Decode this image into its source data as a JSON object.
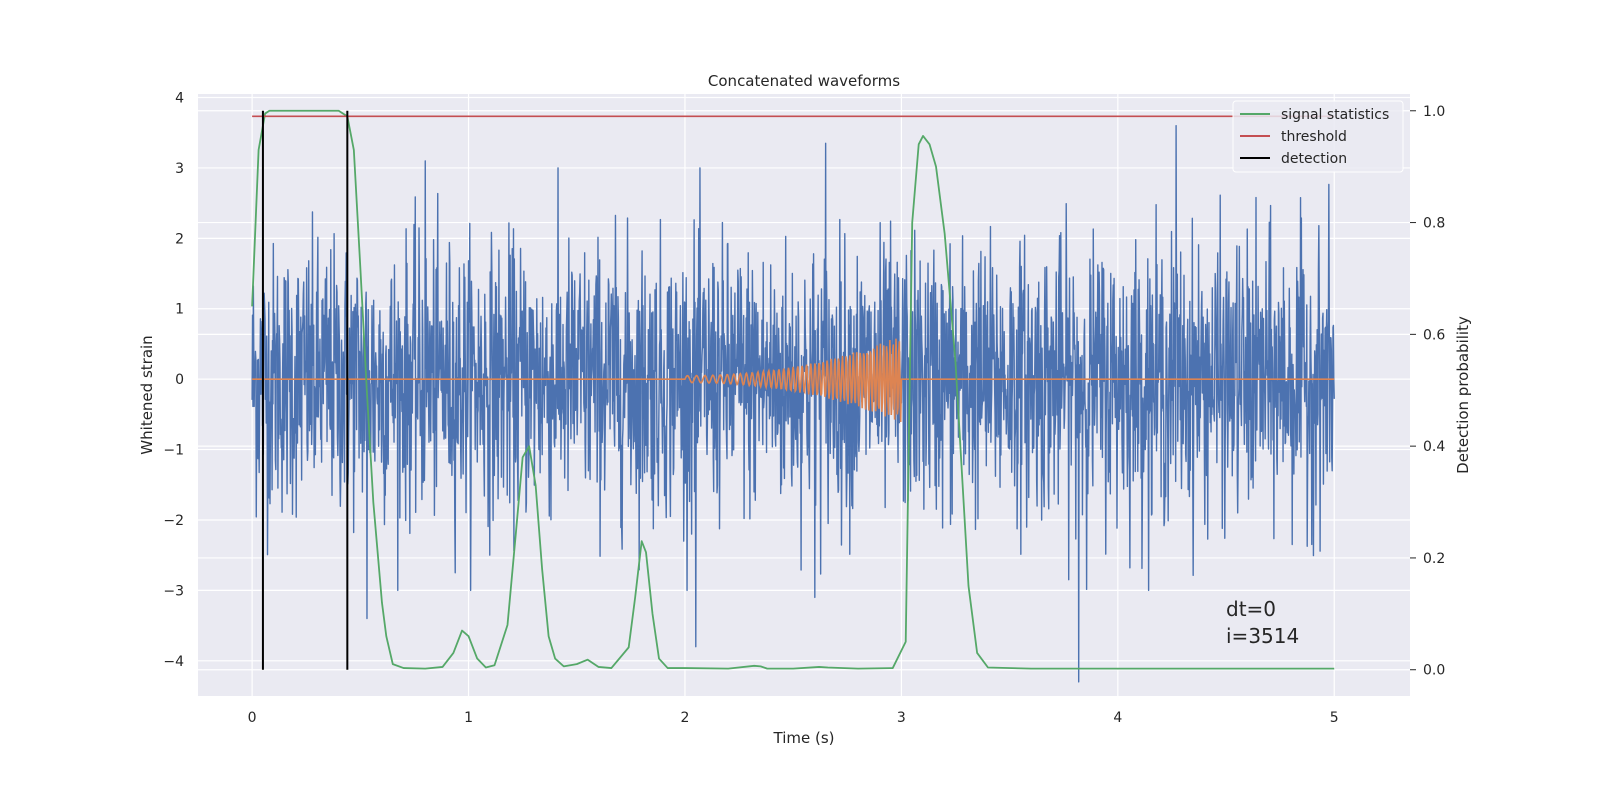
{
  "chart_data": {
    "type": "line",
    "title": "Concatenated waveforms",
    "xlabel": "Time (s)",
    "ylabel": "Whitened strain",
    "y2label": "Detection probability",
    "xlim": [
      -0.25,
      5.35
    ],
    "ylim": [
      -4.5,
      4.05
    ],
    "y2lim": [
      -0.047,
      1.03
    ],
    "xticks": [
      0,
      1,
      2,
      3,
      4,
      5
    ],
    "yticks": [
      -4,
      -3,
      -2,
      -1,
      0,
      1,
      2,
      3,
      4
    ],
    "y2ticks": [
      0.0,
      0.2,
      0.4,
      0.6,
      0.8,
      1.0
    ],
    "y2tick_labels": [
      "0.0",
      "0.2",
      "0.4",
      "0.6",
      "0.8",
      "1.0"
    ],
    "grid": true,
    "legend_position": "top-right",
    "colors": {
      "strain": "#4c72b0",
      "template": "#dd8452",
      "signal_statistics": "#55a868",
      "threshold": "#c44e52",
      "detection": "#000000",
      "axes_bg": "#eaeaf2",
      "grid": "#ffffff"
    },
    "series": [
      {
        "name": "",
        "axis": "left",
        "description_key": "strain",
        "x_range": [
          0,
          5
        ],
        "approx_sigma": 1.0,
        "extremes": [
          {
            "x": 0.8,
            "y": 3.1
          },
          {
            "x": 0.53,
            "y": -3.4
          },
          {
            "x": 2.05,
            "y": -3.8
          },
          {
            "x": 2.65,
            "y": 3.35
          },
          {
            "x": 3.82,
            "y": -4.3
          },
          {
            "x": 4.27,
            "y": 3.6
          },
          {
            "x": 2.6,
            "y": -3.1
          }
        ]
      },
      {
        "name": "",
        "axis": "left",
        "description_key": "template",
        "x_range": [
          0,
          5
        ],
        "chirp_start": 2.0,
        "chirp_end": 3.0,
        "start_amplitude": 0.05,
        "end_amplitude": 0.62
      },
      {
        "name": "signal statistics",
        "axis": "right",
        "x": [
          0.0,
          0.03,
          0.06,
          0.08,
          0.12,
          0.2,
          0.3,
          0.4,
          0.44,
          0.47,
          0.5,
          0.53,
          0.56,
          0.6,
          0.62,
          0.65,
          0.7,
          0.8,
          0.88,
          0.93,
          0.97,
          1.0,
          1.04,
          1.08,
          1.12,
          1.18,
          1.22,
          1.25,
          1.28,
          1.31,
          1.34,
          1.37,
          1.4,
          1.44,
          1.5,
          1.55,
          1.6,
          1.66,
          1.74,
          1.77,
          1.8,
          1.82,
          1.85,
          1.88,
          1.92,
          2.0,
          2.2,
          2.32,
          2.35,
          2.38,
          2.5,
          2.62,
          2.66,
          2.8,
          2.96,
          3.02,
          3.05,
          3.08,
          3.1,
          3.13,
          3.16,
          3.2,
          3.25,
          3.28,
          3.31,
          3.35,
          3.4,
          3.6,
          4.0,
          4.5,
          5.0
        ],
        "y": [
          0.65,
          0.93,
          0.995,
          1.0,
          1.0,
          1.0,
          1.0,
          1.0,
          0.99,
          0.93,
          0.72,
          0.5,
          0.3,
          0.12,
          0.06,
          0.01,
          0.003,
          0.002,
          0.005,
          0.03,
          0.07,
          0.06,
          0.02,
          0.004,
          0.008,
          0.08,
          0.25,
          0.38,
          0.4,
          0.33,
          0.18,
          0.06,
          0.02,
          0.006,
          0.01,
          0.018,
          0.005,
          0.003,
          0.04,
          0.13,
          0.23,
          0.21,
          0.1,
          0.02,
          0.003,
          0.003,
          0.002,
          0.007,
          0.006,
          0.002,
          0.002,
          0.005,
          0.004,
          0.002,
          0.003,
          0.05,
          0.8,
          0.94,
          0.955,
          0.94,
          0.9,
          0.78,
          0.55,
          0.35,
          0.15,
          0.03,
          0.004,
          0.002,
          0.002,
          0.002,
          0.002
        ]
      },
      {
        "name": "threshold",
        "axis": "right",
        "x": [
          0,
          5
        ],
        "y": [
          0.99,
          0.99
        ]
      },
      {
        "name": "detection",
        "axis": "right",
        "lines_x": [
          0.05,
          0.44
        ],
        "y_range": [
          0.0,
          1.0
        ]
      }
    ],
    "annotations": [
      "dt=0",
      "i=3514"
    ]
  }
}
